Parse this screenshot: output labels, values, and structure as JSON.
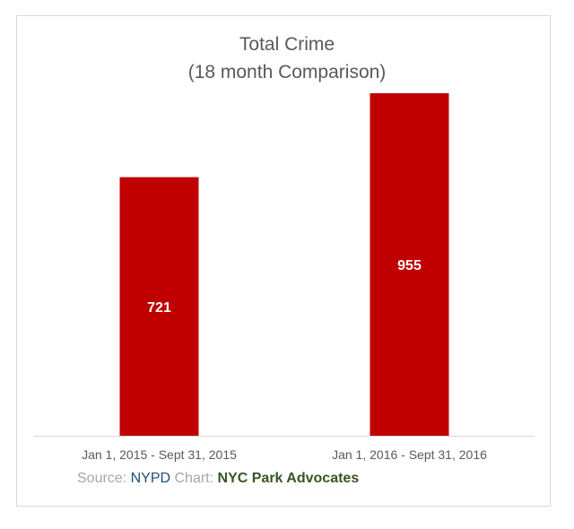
{
  "chart_data": {
    "type": "bar",
    "title": "Total Crime",
    "subtitle": "(18 month Comparison)",
    "categories": [
      "Jan 1, 2015 - Sept 31, 2015",
      "Jan 1, 2016 - Sept 31, 2016"
    ],
    "values": [
      721,
      955
    ],
    "data_labels": [
      "721",
      "955"
    ],
    "bar_color": "#c00000",
    "axis_color": "#d9d9d9",
    "ylim": [
      0,
      1000
    ],
    "grid": false,
    "legend": "none"
  },
  "footer": {
    "source_prefix": "Source:",
    "source_name": "NYPD",
    "chart_prefix": "Chart:",
    "chart_name": "NYC Park Advocates"
  }
}
